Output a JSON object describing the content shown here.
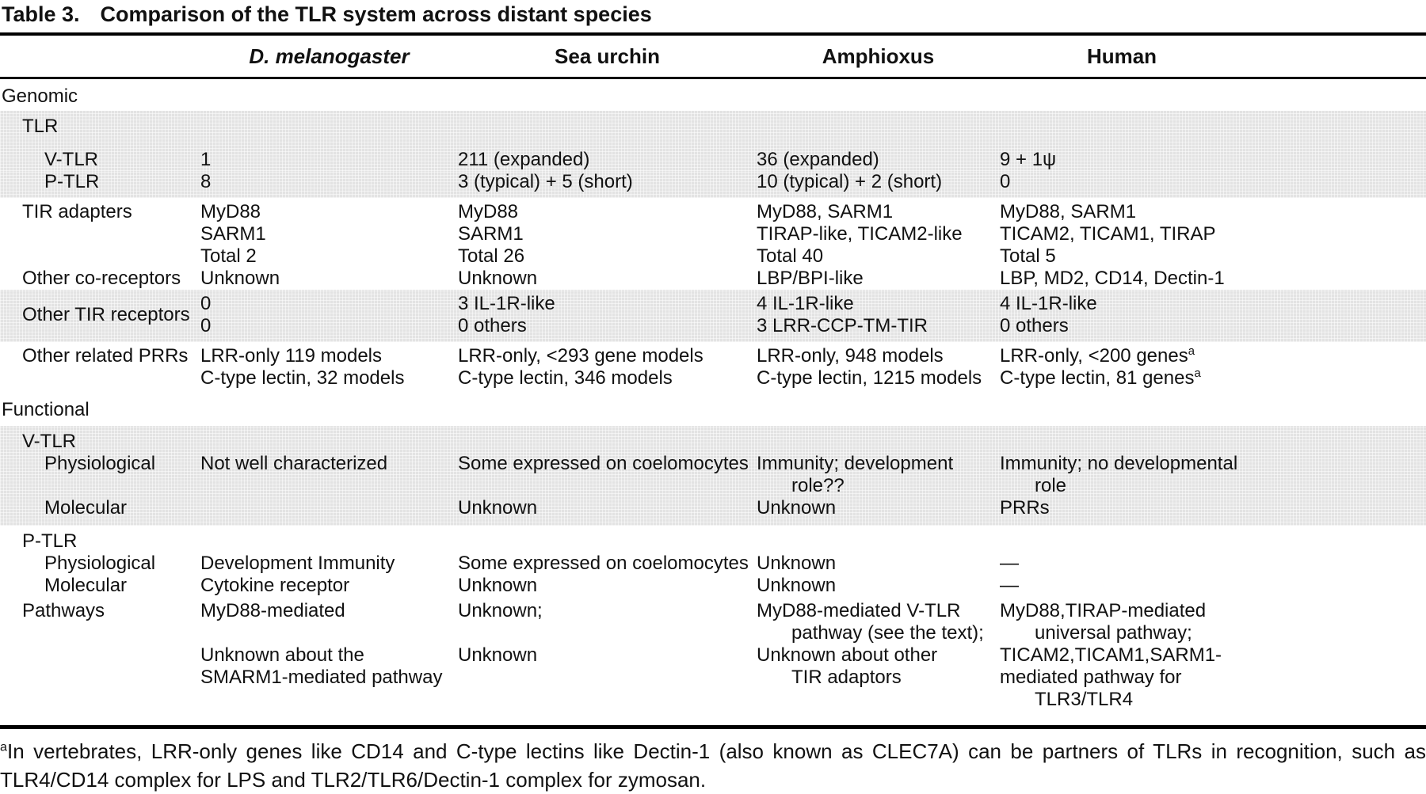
{
  "title": {
    "label": "Table 3.",
    "text": "Comparison of the TLR system across distant species"
  },
  "columns": [
    "D. melanogaster",
    "Sea urchin",
    "Amphioxus",
    "Human"
  ],
  "column_keys": [
    "d-melanogaster",
    "sea-urchin",
    "amphioxus",
    "human"
  ],
  "colors": {
    "shade": "#e3e3e3",
    "rule": "#000000",
    "text": "#111111"
  },
  "table": {
    "rows": [
      {
        "label": "Genomic",
        "level": 0,
        "section": true,
        "shaded": false,
        "pads": [
          "pt8",
          "pb4"
        ],
        "cells": null
      },
      {
        "label": "TLR",
        "level": 1,
        "shaded": true,
        "pads": [
          "pt6",
          "pb14"
        ],
        "cells": null
      },
      {
        "label": "V-TLR",
        "level": 2,
        "shaded": true,
        "pads": [],
        "cells": [
          [
            "1"
          ],
          [
            "211 (expanded)"
          ],
          [
            "36 (expanded)"
          ],
          [
            "9 + 1ψ"
          ]
        ]
      },
      {
        "label": "P-TLR",
        "level": 2,
        "shaded": true,
        "pads": [
          "pb6"
        ],
        "cells": [
          [
            "8"
          ],
          [
            "3 (typical) + 5 (short)"
          ],
          [
            "10 (typical) + 2 (short)"
          ],
          [
            "0"
          ]
        ]
      },
      {
        "label": "TIR adapters",
        "level": 1,
        "shaded": false,
        "pads": [
          "pt4"
        ],
        "cells": [
          [
            "MyD88",
            "SARM1",
            "Total 2"
          ],
          [
            "MyD88",
            "SARM1",
            "Total 26"
          ],
          [
            "MyD88, SARM1",
            "TIRAP-like, TICAM2-like",
            "Total 40"
          ],
          [
            "MyD88, SARM1",
            "TICAM2, TICAM1, TIRAP",
            "Total 5"
          ]
        ]
      },
      {
        "label": "Other co-receptors",
        "level": 1,
        "shaded": false,
        "pads": [],
        "cells": [
          [
            "Unknown"
          ],
          [
            "Unknown"
          ],
          [
            "LBP/BPI-like"
          ],
          [
            "LBP, MD2, CD14, Dectin-1"
          ]
        ]
      },
      {
        "label": "Other TIR receptors",
        "level": 1,
        "shaded": true,
        "vcenterLabel": true,
        "pads": [
          "pt4",
          "pb6"
        ],
        "cells": [
          [
            "0",
            "0"
          ],
          [
            "3 IL-1R-like",
            "0 others"
          ],
          [
            "4 IL-1R-like",
            "3 LRR-CCP-TM-TIR"
          ],
          [
            "4 IL-1R-like",
            "0 others"
          ]
        ]
      },
      {
        "label": "Other related PRRs",
        "level": 1,
        "shaded": false,
        "pads": [
          "pt4",
          "pb4"
        ],
        "cells": [
          [
            "LRR-only 119 models",
            "C-type lectin, 32 models"
          ],
          [
            "LRR-only, <293 gene models",
            "C-type lectin, 346 models"
          ],
          [
            "LRR-only, 948 models",
            "C-type lectin, 1215 models"
          ],
          [
            "LRR-only, <200 genes^a",
            "C-type lectin, 81 genes^a"
          ]
        ]
      },
      {
        "label": "Functional",
        "level": 0,
        "section": true,
        "shaded": false,
        "pads": [
          "pt8",
          "pb6"
        ],
        "cells": null
      },
      {
        "label": "V-TLR",
        "level": 1,
        "shaded": true,
        "pads": [
          "pt6"
        ],
        "cells": null
      },
      {
        "label": "Physiological",
        "level": 2,
        "shaded": true,
        "pads": [],
        "cells": [
          [
            "Not well characterized"
          ],
          [
            "Some expressed on coelomocytes"
          ],
          [
            "Immunity; development",
            "~role??"
          ],
          [
            "Immunity; no developmental",
            "~role"
          ]
        ]
      },
      {
        "label": "Molecular",
        "level": 2,
        "shaded": true,
        "pads": [
          "pb8"
        ],
        "cells": [
          [],
          [
            "Unknown"
          ],
          [
            "Unknown"
          ],
          [
            "PRRs"
          ]
        ]
      },
      {
        "label": "P-TLR",
        "level": 1,
        "shaded": false,
        "pads": [
          "pt6"
        ],
        "cells": null
      },
      {
        "label": "Physiological",
        "level": 2,
        "shaded": false,
        "pads": [],
        "cells": [
          [
            "Development Immunity"
          ],
          [
            "Some expressed on coelomocytes"
          ],
          [
            "Unknown"
          ],
          [
            "—"
          ]
        ]
      },
      {
        "label": "Molecular",
        "level": 2,
        "shaded": false,
        "pads": [],
        "cells": [
          [
            "Cytokine receptor"
          ],
          [
            "Unknown"
          ],
          [
            "Unknown"
          ],
          [
            "—"
          ]
        ]
      },
      {
        "label": "Pathways",
        "level": 1,
        "shaded": false,
        "pads": [
          "pt4"
        ],
        "cells": [
          [
            "MyD88-mediated",
            "",
            "Unknown about the",
            "SMARM1-mediated pathway"
          ],
          [
            "Unknown;",
            "",
            "Unknown"
          ],
          [
            "MyD88-mediated V-TLR",
            "~pathway (see the text);",
            "Unknown about other",
            "~TIR adaptors"
          ],
          [
            "MyD88,TIRAP-mediated",
            "~universal pathway;",
            "TICAM2,TICAM1,SARM1-",
            "mediated pathway for",
            "~TLR3/TLR4"
          ]
        ]
      }
    ]
  },
  "footnote": "^aIn vertebrates, LRR-only genes like CD14 and C-type lectins like Dectin-1 (also known as CLEC7A) can be partners of TLRs in recognition, such as TLR4/CD14 complex for LPS and TLR2/TLR6/Dectin-1 complex for zymosan."
}
